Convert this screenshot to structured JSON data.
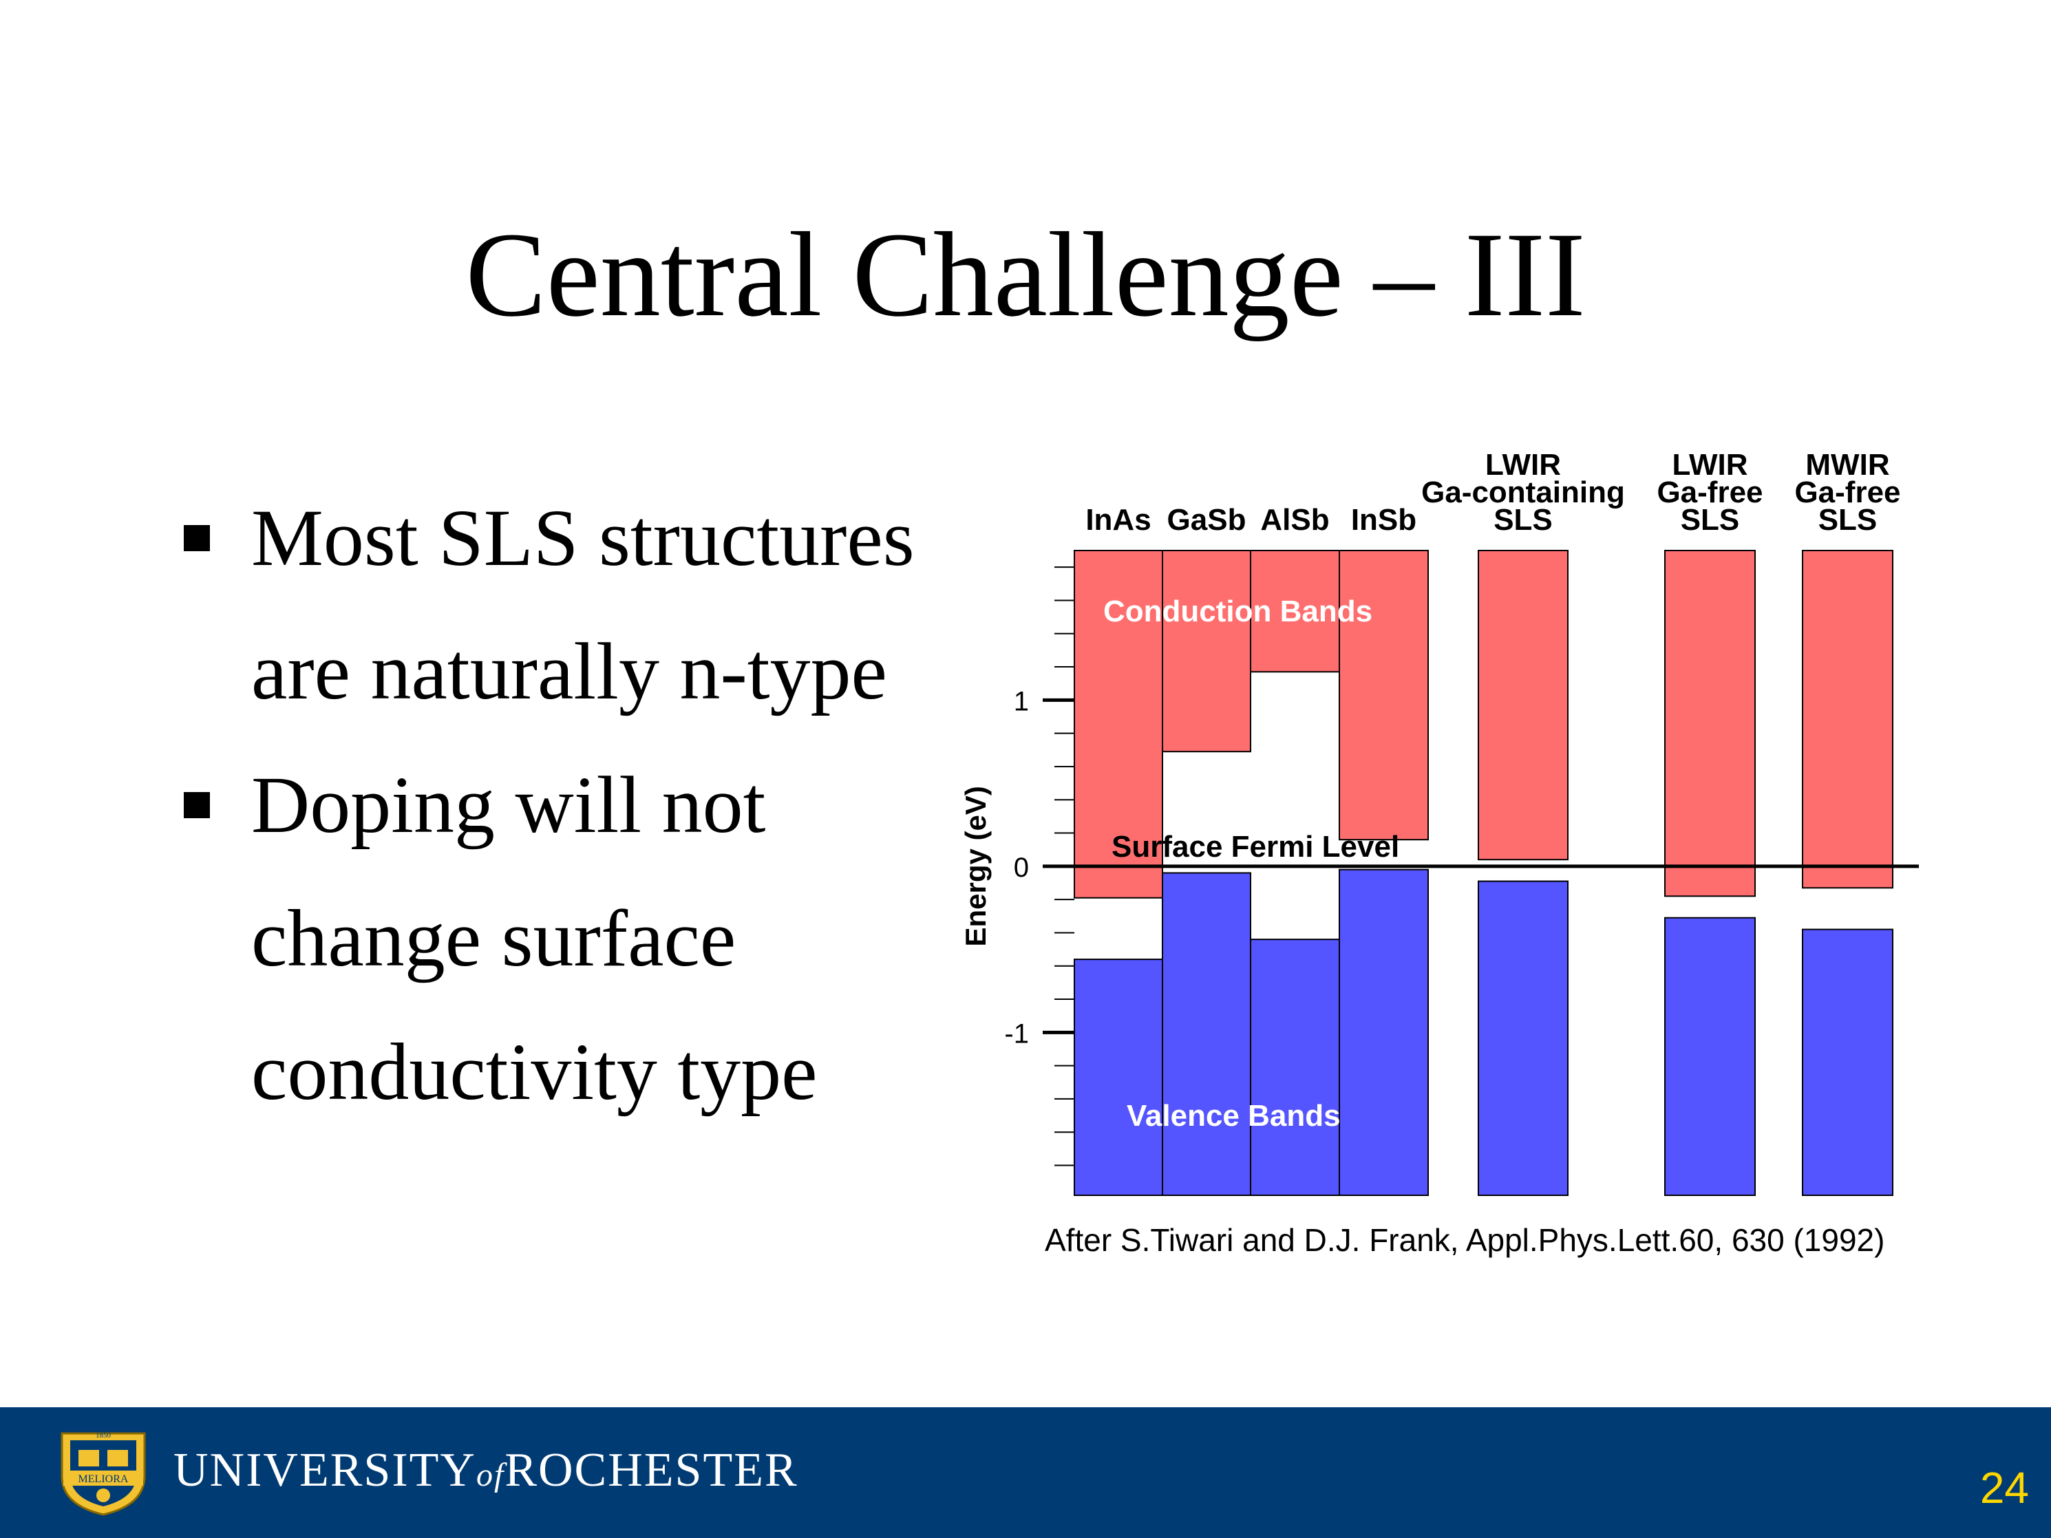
{
  "slide": {
    "title": "Central Challenge – III",
    "bullets": [
      {
        "lines": [
          "Most SLS structures",
          "are naturally n-type"
        ]
      },
      {
        "lines": [
          "Doping will not",
          "change surface",
          "conductivity type"
        ]
      }
    ],
    "citation": "After S.Tiwari and D.J. Frank, Appl.Phys.Lett.60, 630 (1992)",
    "footer": {
      "university_before": "UNIVERSITY",
      "university_of": "of",
      "university_after": "ROCHESTER",
      "seal_text": "MELIORA",
      "seal_year": "1850"
    },
    "page_number": "24"
  },
  "colors": {
    "conduction": "#ff6e6e",
    "valence": "#5555ff",
    "footer_bg": "#003b73",
    "page_number": "#ffd700",
    "axis": "#000000"
  },
  "chart_data": {
    "type": "bar",
    "subtype": "floating band diagram",
    "ylabel": "Energy (eV)",
    "ylim": [
      -1.98,
      1.9
    ],
    "yticks": [
      {
        "value": 1,
        "label": "1"
      },
      {
        "value": 0,
        "label": "0"
      },
      {
        "value": -1,
        "label": "-1"
      }
    ],
    "minor_tick_step": 0.2,
    "reference_line": {
      "value": 0,
      "label": "Surface Fermi Level"
    },
    "band_labels": {
      "conduction": "Conduction Bands",
      "valence": "Valence Bands"
    },
    "materials": [
      {
        "label_lines": [
          "InAs"
        ],
        "conduction_min": -0.19,
        "valence_max": -0.56
      },
      {
        "label_lines": [
          "GaSb"
        ],
        "conduction_min": 0.69,
        "valence_max": -0.04
      },
      {
        "label_lines": [
          "AlSb"
        ],
        "conduction_min": 1.17,
        "valence_max": -0.44
      },
      {
        "label_lines": [
          "InSb"
        ],
        "conduction_min": 0.16,
        "valence_max": -0.02
      },
      {
        "label_lines": [
          "LWIR",
          "Ga-containing",
          "SLS"
        ],
        "conduction_min": 0.04,
        "valence_max": -0.09
      },
      {
        "label_lines": [
          "LWIR",
          "Ga-free",
          "SLS"
        ],
        "conduction_min": -0.18,
        "valence_max": -0.31
      },
      {
        "label_lines": [
          "MWIR",
          "Ga-free",
          "SLS"
        ],
        "conduction_min": -0.13,
        "valence_max": -0.38
      }
    ]
  }
}
